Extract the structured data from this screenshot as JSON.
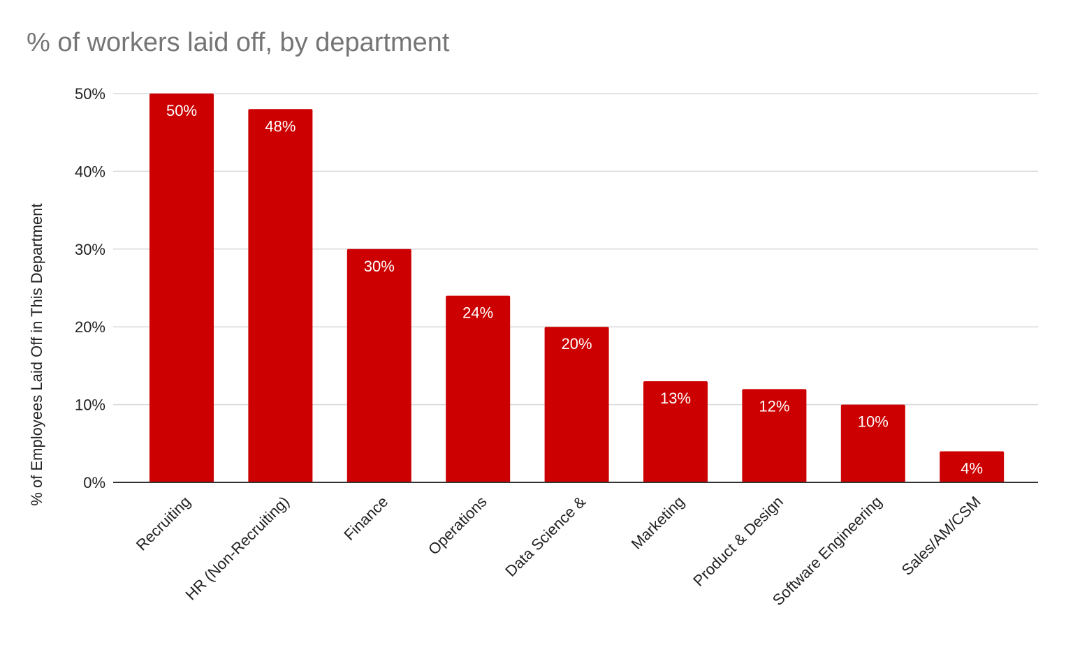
{
  "chart_data": {
    "type": "bar",
    "title": "% of workers laid off, by department",
    "ylabel": "% of Employees Laid Off in This Department",
    "xlabel": "",
    "categories": [
      "Recruiting",
      "HR (Non-Recruiting)",
      "Finance",
      "Operations",
      "Data Science &",
      "Marketing",
      "Product & Design",
      "Software Engineering",
      "Sales/AM/CSM"
    ],
    "values": [
      50,
      48,
      30,
      24,
      20,
      13,
      12,
      10,
      4
    ],
    "data_labels": [
      "50%",
      "48%",
      "30%",
      "24%",
      "20%",
      "13%",
      "12%",
      "10%",
      "4%"
    ],
    "ylim": [
      0,
      50
    ],
    "yticks": [
      0,
      10,
      20,
      30,
      40,
      50
    ],
    "ytick_labels": [
      "0%",
      "10%",
      "20%",
      "30%",
      "40%",
      "50%"
    ],
    "grid": true,
    "legend": "none",
    "bar_color": "#cc0000",
    "gridline_color": "#d9d9d9",
    "axis_color": "#333333"
  }
}
